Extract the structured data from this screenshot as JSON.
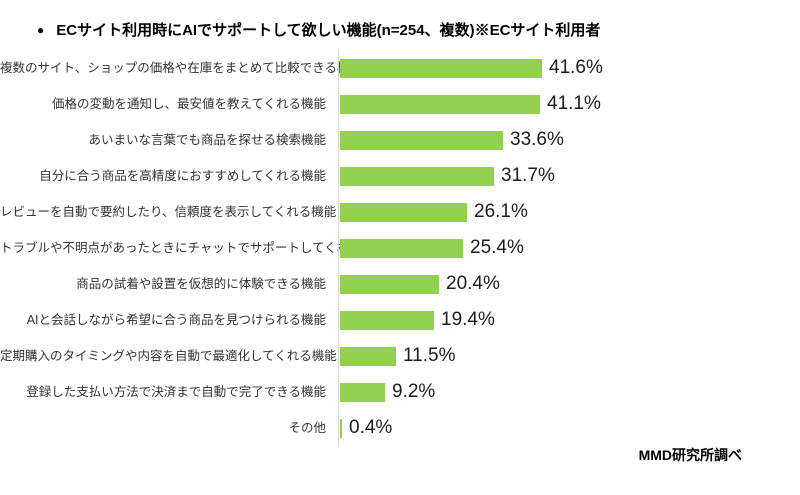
{
  "title": {
    "bullet": "●",
    "text": "ECサイト利用時にAIでサポートして欲しい機能(n=254、複数)※ECサイト利用者"
  },
  "source": "MMD研究所調べ",
  "chart_data": {
    "type": "bar",
    "orientation": "horizontal",
    "title": "ECサイト利用時にAIでサポートして欲しい機能(n=254、複数)※ECサイト利用者",
    "unit": "%",
    "categories": [
      "複数のサイト、ショップの価格や在庫をまとめて比較できる機能",
      "価格の変動を通知し、最安値を教えてくれる機能",
      "あいまいな言葉でも商品を探せる検索機能",
      "自分に合う商品を高精度におすすめしてくれる機能",
      "レビューを自動で要約したり、信頼度を表示してくれる機能",
      "トラブルや不明点があったときにチャットでサポートしてくれる機能",
      "商品の試着や設置を仮想的に体験できる機能",
      "AIと会話しながら希望に合う商品を見つけられる機能",
      "定期購入のタイミングや内容を自動で最適化してくれる機能",
      "登録した支払い方法で決済まで自動で完了できる機能",
      "その他"
    ],
    "values": [
      41.6,
      41.1,
      33.6,
      31.7,
      26.1,
      25.4,
      20.4,
      19.4,
      11.5,
      9.2,
      0.4
    ],
    "value_labels": [
      "41.6%",
      "41.1%",
      "33.6%",
      "31.7%",
      "26.1%",
      "25.4%",
      "20.4%",
      "19.4%",
      "11.5%",
      "9.2%",
      "0.4%"
    ],
    "bar_color": "#92D050",
    "axis_line_color": "#d9d9d9",
    "grid": false,
    "legend": "none",
    "value_axis_visible": false
  }
}
